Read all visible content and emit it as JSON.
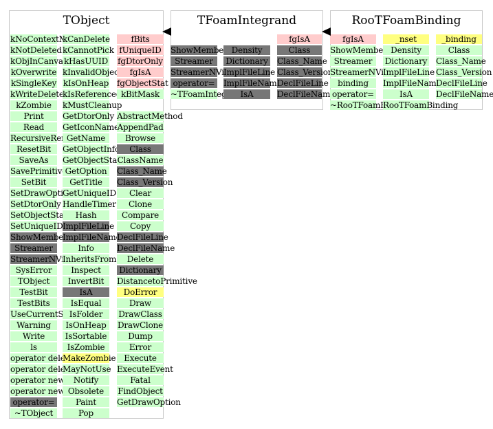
{
  "classes": [
    {
      "id": "tobject",
      "title": "TObject",
      "columns": [
        [
          {
            "t": "kNoContextMenu",
            "c": "g"
          },
          {
            "t": "kNotDeleted",
            "c": "g"
          },
          {
            "t": "kObjInCanvas",
            "c": "g"
          },
          {
            "t": "kOverwrite",
            "c": "g"
          },
          {
            "t": "kSingleKey",
            "c": "g"
          },
          {
            "t": "kWriteDelete",
            "c": "g"
          },
          {
            "t": "kZombie",
            "c": "g"
          },
          {
            "t": "Print",
            "c": "g"
          },
          {
            "t": "Read",
            "c": "g"
          },
          {
            "t": "RecursiveRemove",
            "c": "g"
          },
          {
            "t": "ResetBit",
            "c": "g"
          },
          {
            "t": "SaveAs",
            "c": "g"
          },
          {
            "t": "SavePrimitive",
            "c": "g"
          },
          {
            "t": "SetBit",
            "c": "g"
          },
          {
            "t": "SetDrawOption",
            "c": "g"
          },
          {
            "t": "SetDtorOnly",
            "c": "g"
          },
          {
            "t": "SetObjectStat",
            "c": "g"
          },
          {
            "t": "SetUniqueID",
            "c": "g"
          },
          {
            "t": "ShowMembers",
            "c": "d"
          },
          {
            "t": "Streamer",
            "c": "d"
          },
          {
            "t": "StreamerNVirtual",
            "c": "d"
          },
          {
            "t": "SysError",
            "c": "g"
          },
          {
            "t": "TObject",
            "c": "g"
          },
          {
            "t": "TestBit",
            "c": "g"
          },
          {
            "t": "TestBits",
            "c": "g"
          },
          {
            "t": "UseCurrentStyle",
            "c": "g"
          },
          {
            "t": "Warning",
            "c": "g"
          },
          {
            "t": "Write",
            "c": "g"
          },
          {
            "t": "ls",
            "c": "g"
          },
          {
            "t": "operator delete",
            "c": "g"
          },
          {
            "t": "operator delete[]",
            "c": "g"
          },
          {
            "t": "operator new",
            "c": "g"
          },
          {
            "t": "operator new[]",
            "c": "g"
          },
          {
            "t": "operator=",
            "c": "d"
          },
          {
            "t": "~TObject",
            "c": "g"
          }
        ],
        [
          {
            "t": "kCanDelete",
            "c": "g"
          },
          {
            "t": "kCannotPick",
            "c": "g"
          },
          {
            "t": "kHasUUID",
            "c": "g"
          },
          {
            "t": "kInvalidObject",
            "c": "g"
          },
          {
            "t": "kIsOnHeap",
            "c": "g"
          },
          {
            "t": "kIsReferenced",
            "c": "g"
          },
          {
            "t": "kMustCleanup",
            "c": "g"
          },
          {
            "t": "GetDtorOnly",
            "c": "g"
          },
          {
            "t": "GetIconName",
            "c": "g"
          },
          {
            "t": "GetName",
            "c": "g"
          },
          {
            "t": "GetObjectInfo",
            "c": "g"
          },
          {
            "t": "GetObjectStat",
            "c": "g"
          },
          {
            "t": "GetOption",
            "c": "g"
          },
          {
            "t": "GetTitle",
            "c": "g"
          },
          {
            "t": "GetUniqueID",
            "c": "g"
          },
          {
            "t": "HandleTimer",
            "c": "g"
          },
          {
            "t": "Hash",
            "c": "g"
          },
          {
            "t": "ImplFileLine",
            "c": "d"
          },
          {
            "t": "ImplFileName",
            "c": "d"
          },
          {
            "t": "Info",
            "c": "g"
          },
          {
            "t": "InheritsFrom",
            "c": "g"
          },
          {
            "t": "Inspect",
            "c": "g"
          },
          {
            "t": "InvertBit",
            "c": "g"
          },
          {
            "t": "IsA",
            "c": "d"
          },
          {
            "t": "IsEqual",
            "c": "g"
          },
          {
            "t": "IsFolder",
            "c": "g"
          },
          {
            "t": "IsOnHeap",
            "c": "g"
          },
          {
            "t": "IsSortable",
            "c": "g"
          },
          {
            "t": "IsZombie",
            "c": "g"
          },
          {
            "t": "MakeZombie",
            "c": "y"
          },
          {
            "t": "MayNotUse",
            "c": "g"
          },
          {
            "t": "Notify",
            "c": "g"
          },
          {
            "t": "Obsolete",
            "c": "g"
          },
          {
            "t": "Paint",
            "c": "g"
          },
          {
            "t": "Pop",
            "c": "g"
          }
        ],
        [
          {
            "t": "fBits",
            "c": "p"
          },
          {
            "t": "fUniqueID",
            "c": "p"
          },
          {
            "t": "fgDtorOnly",
            "c": "p"
          },
          {
            "t": "fgIsA",
            "c": "p"
          },
          {
            "t": "fgObjectStat",
            "c": "p"
          },
          {
            "t": "kBitMask",
            "c": "g"
          },
          {
            "t": "",
            "c": "w"
          },
          {
            "t": "AbstractMethod",
            "c": "g"
          },
          {
            "t": "AppendPad",
            "c": "g"
          },
          {
            "t": "Browse",
            "c": "g"
          },
          {
            "t": "Class",
            "c": "d"
          },
          {
            "t": "ClassName",
            "c": "g"
          },
          {
            "t": "Class_Name",
            "c": "d"
          },
          {
            "t": "Class_Version",
            "c": "d"
          },
          {
            "t": "Clear",
            "c": "g"
          },
          {
            "t": "Clone",
            "c": "g"
          },
          {
            "t": "Compare",
            "c": "g"
          },
          {
            "t": "Copy",
            "c": "g"
          },
          {
            "t": "DeclFileLine",
            "c": "d"
          },
          {
            "t": "DeclFileName",
            "c": "d"
          },
          {
            "t": "Delete",
            "c": "g"
          },
          {
            "t": "Dictionary",
            "c": "d"
          },
          {
            "t": "DistancetoPrimitive",
            "c": "g"
          },
          {
            "t": "DoError",
            "c": "y"
          },
          {
            "t": "Draw",
            "c": "g"
          },
          {
            "t": "DrawClass",
            "c": "g"
          },
          {
            "t": "DrawClone",
            "c": "g"
          },
          {
            "t": "Dump",
            "c": "g"
          },
          {
            "t": "Error",
            "c": "g"
          },
          {
            "t": "Execute",
            "c": "g"
          },
          {
            "t": "ExecuteEvent",
            "c": "g"
          },
          {
            "t": "Fatal",
            "c": "g"
          },
          {
            "t": "FindObject",
            "c": "g"
          },
          {
            "t": "GetDrawOption",
            "c": "g"
          }
        ]
      ]
    },
    {
      "id": "tfoamintegrand",
      "title": "TFoamIntegrand",
      "columns": [
        [
          {
            "t": "ShowMembers",
            "c": "d"
          },
          {
            "t": "Streamer",
            "c": "d"
          },
          {
            "t": "StreamerNVirtual",
            "c": "d"
          },
          {
            "t": "operator=",
            "c": "d"
          },
          {
            "t": "~TFoamIntegrand",
            "c": "g"
          }
        ],
        [
          {
            "t": "Density",
            "c": "d"
          },
          {
            "t": "Dictionary",
            "c": "d"
          },
          {
            "t": "ImplFileLine",
            "c": "d"
          },
          {
            "t": "ImplFileName",
            "c": "d"
          },
          {
            "t": "IsA",
            "c": "d"
          }
        ],
        [
          {
            "t": "fgIsA",
            "c": "p"
          },
          {
            "t": "Class",
            "c": "d"
          },
          {
            "t": "Class_Name",
            "c": "d"
          },
          {
            "t": "Class_Version",
            "c": "d"
          },
          {
            "t": "DeclFileLine",
            "c": "d"
          },
          {
            "t": "DeclFileName",
            "c": "d"
          }
        ]
      ]
    },
    {
      "id": "rootfoambinding",
      "title": "RooTFoamBinding",
      "columns": [
        [
          {
            "t": "fgIsA",
            "c": "p"
          },
          {
            "t": "ShowMembers",
            "c": "g"
          },
          {
            "t": "Streamer",
            "c": "g"
          },
          {
            "t": "StreamerNVirtual",
            "c": "g"
          },
          {
            "t": "binding",
            "c": "g"
          },
          {
            "t": "operator=",
            "c": "g"
          },
          {
            "t": "~RooTFoamBinding",
            "c": "g"
          }
        ],
        [
          {
            "t": "_nset",
            "c": "y"
          },
          {
            "t": "Density",
            "c": "g"
          },
          {
            "t": "Dictionary",
            "c": "g"
          },
          {
            "t": "ImplFileLine",
            "c": "g"
          },
          {
            "t": "ImplFileName",
            "c": "g"
          },
          {
            "t": "IsA",
            "c": "g"
          },
          {
            "t": "RooTFoamBinding",
            "c": "g"
          }
        ],
        [
          {
            "t": "_binding",
            "c": "y"
          },
          {
            "t": "Class",
            "c": "g"
          },
          {
            "t": "Class_Name",
            "c": "g"
          },
          {
            "t": "Class_Version",
            "c": "g"
          },
          {
            "t": "DeclFileLine",
            "c": "g"
          },
          {
            "t": "DeclFileName",
            "c": "g"
          }
        ]
      ]
    }
  ]
}
